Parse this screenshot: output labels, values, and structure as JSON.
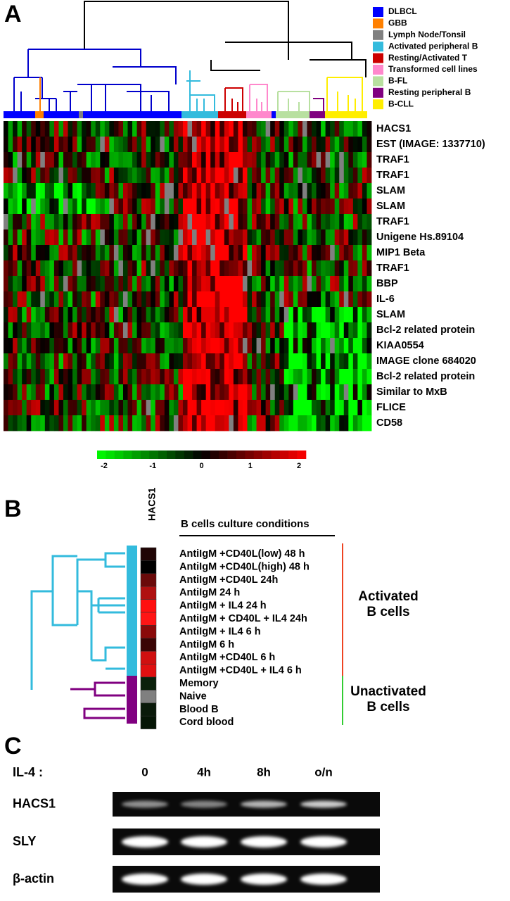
{
  "panel_a": {
    "label": "A",
    "legend": [
      {
        "name": "DLBCL",
        "color": "#0000ff"
      },
      {
        "name": "GBB",
        "color": "#ff8000"
      },
      {
        "name": "Lymph Node/Tonsil",
        "color": "#808080"
      },
      {
        "name": "Activated peripheral B",
        "color": "#33bbdd"
      },
      {
        "name": "Resting/Activated T",
        "color": "#cc0000"
      },
      {
        "name": "Transformed cell lines",
        "color": "#ff88cc"
      },
      {
        "name": "B-FL",
        "color": "#b8e0a0"
      },
      {
        "name": "Resting peripheral B",
        "color": "#800080"
      },
      {
        "name": "B-CLL",
        "color": "#ffee00"
      }
    ],
    "genes": [
      "HACS1",
      "EST (IMAGE: 1337710)",
      "TRAF1",
      "TRAF1",
      "SLAM",
      "SLAM",
      "TRAF1",
      "Unigene Hs.89104",
      "MIP1 Beta",
      "TRAF1",
      "BBP",
      "IL-6",
      "SLAM",
      "Bcl-2 related protein",
      "KIAA0554",
      "IMAGE clone 684020",
      "Bcl-2 related protein",
      "Similar to MxB",
      "FLICE",
      "CD58"
    ],
    "colorbar": {
      "ticks": [
        -2,
        -1,
        0,
        1,
        2
      ]
    }
  },
  "panel_b": {
    "label": "B",
    "column": "HACS1",
    "header": "B cells culture conditions",
    "conditions": [
      {
        "text": "AntiIgM +CD40L(low) 48 h",
        "color": "#000000",
        "cell": "#200505"
      },
      {
        "text": "AntiIgM +CD40L(high) 48 h",
        "color": "#993322",
        "cell": "#000000"
      },
      {
        "text": "AntiIgM +CD40L 24h",
        "color": "#000000",
        "cell": "#6a0a0a"
      },
      {
        "text": "AntiIgM 24 h",
        "color": "#993322",
        "cell": "#b01010"
      },
      {
        "text": "AntiIgM + IL4 24 h",
        "color": "#ee4422",
        "cell": "#ff1010"
      },
      {
        "text": "AntiIgM + CD40L + IL4 24h",
        "color": "#ee4422",
        "cell": "#ff1515"
      },
      {
        "text": "AntiIgM + IL4 6 h",
        "color": "#ee4422",
        "cell": "#8a0a0a"
      },
      {
        "text": "AntiIgM 6 h",
        "color": "#000000",
        "cell": "#3a0505"
      },
      {
        "text": "AntiIgM +CD40L 6 h",
        "color": "#993322",
        "cell": "#d01010"
      },
      {
        "text": "AntiIgM +CD40L + IL4 6 h",
        "color": "#ee4422",
        "cell": "#e01010"
      },
      {
        "text": "Memory",
        "color": "#336600",
        "cell": "#0a200a"
      },
      {
        "text": "Naive",
        "color": "#000000",
        "cell": "#808080"
      },
      {
        "text": "Blood B",
        "color": "#000000",
        "cell": "#0a1a0a"
      },
      {
        "text": "Cord blood",
        "color": "#33cc33",
        "cell": "#051505"
      }
    ],
    "groups": [
      [
        "Activated",
        "B cells"
      ],
      [
        "Unactivated",
        "B cells"
      ]
    ]
  },
  "panel_c": {
    "label": "C",
    "treatment": "IL-4 :",
    "timepoints": [
      "0",
      "4h",
      "8h",
      "o/n"
    ],
    "genes": [
      "HACS1",
      "SLY",
      "β-actin"
    ]
  }
}
